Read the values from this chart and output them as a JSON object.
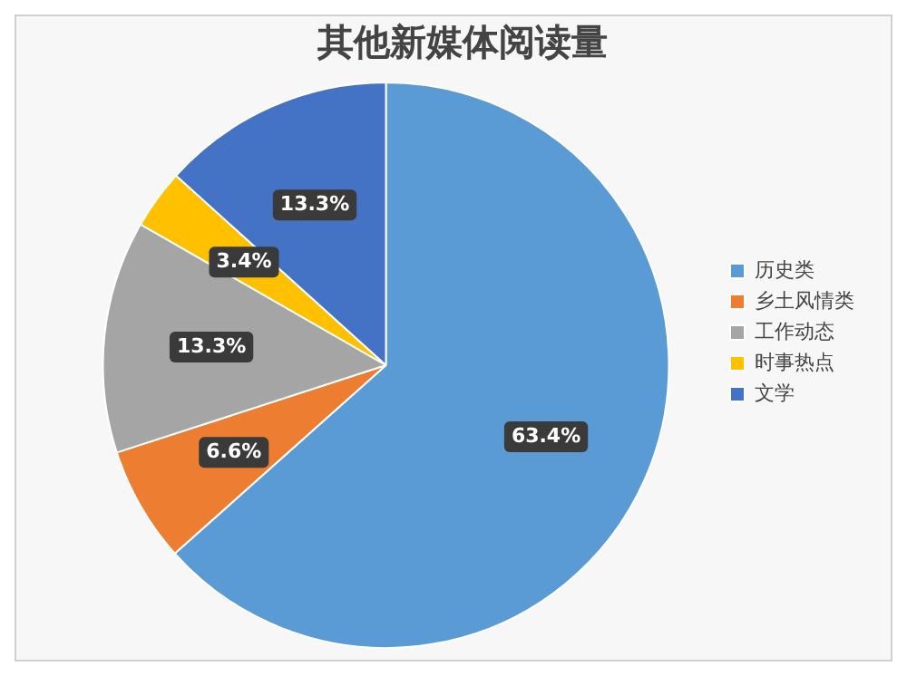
{
  "chart_data": {
    "type": "pie",
    "title": "其他新媒体阅读量",
    "categories": [
      "历史类",
      "乡土风情类",
      "工作动态",
      "时事热点",
      "文学"
    ],
    "values": [
      63.4,
      6.6,
      13.3,
      3.4,
      13.3
    ],
    "colors": [
      "#5b9bd5",
      "#ed7d31",
      "#a5a5a5",
      "#ffc000",
      "#4472c4"
    ],
    "value_labels": [
      "63.4%",
      "6.6%",
      "13.3%",
      "3.4%",
      "13.3%"
    ],
    "legend": "right"
  }
}
